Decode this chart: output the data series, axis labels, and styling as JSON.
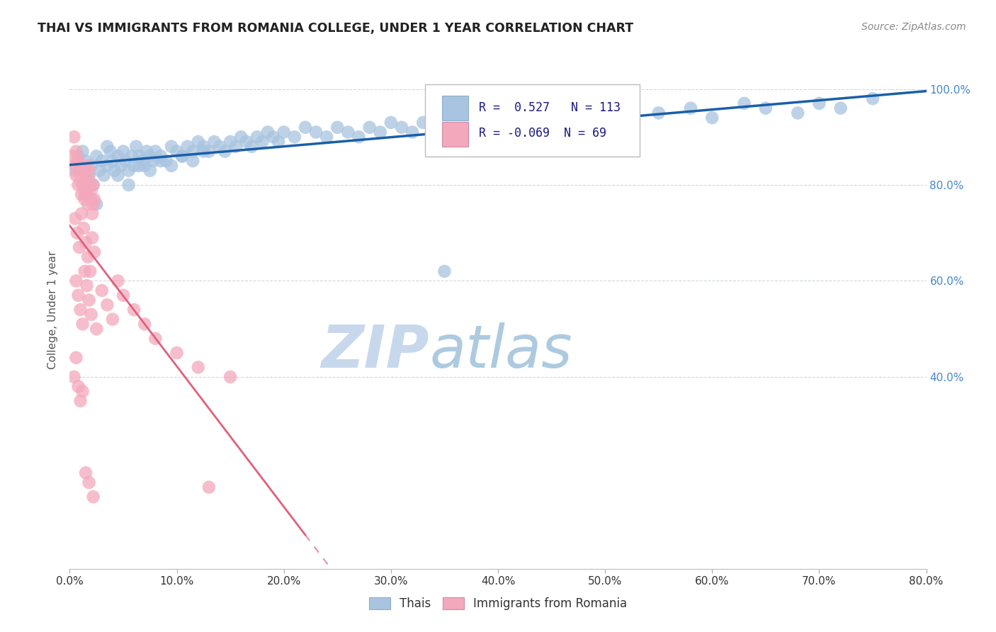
{
  "title": "THAI VS IMMIGRANTS FROM ROMANIA COLLEGE, UNDER 1 YEAR CORRELATION CHART",
  "source": "Source: ZipAtlas.com",
  "ylabel_label": "College, Under 1 year",
  "xlim": [
    0.0,
    0.8
  ],
  "ylim": [
    0.0,
    1.08
  ],
  "thai_R": 0.527,
  "thai_N": 113,
  "romania_R": -0.069,
  "romania_N": 69,
  "thai_color": "#a8c4e0",
  "thai_line_color": "#1a5fa8",
  "romania_color": "#f4a8bc",
  "romania_line_color": "#e0607a",
  "watermark_color": "#c8d8ec",
  "background_color": "#ffffff",
  "grid_color": "#c8d4dc",
  "right_axis_color": "#4488cc",
  "thai_scatter_x": [
    0.005,
    0.008,
    0.01,
    0.012,
    0.015,
    0.018,
    0.02,
    0.022,
    0.025,
    0.028,
    0.03,
    0.032,
    0.035,
    0.038,
    0.04,
    0.042,
    0.045,
    0.048,
    0.05,
    0.052,
    0.055,
    0.058,
    0.06,
    0.062,
    0.065,
    0.068,
    0.07,
    0.072,
    0.075,
    0.078,
    0.08,
    0.085,
    0.09,
    0.095,
    0.1,
    0.105,
    0.11,
    0.115,
    0.12,
    0.125,
    0.13,
    0.135,
    0.14,
    0.145,
    0.15,
    0.155,
    0.16,
    0.165,
    0.17,
    0.175,
    0.18,
    0.185,
    0.19,
    0.195,
    0.2,
    0.21,
    0.22,
    0.23,
    0.24,
    0.25,
    0.26,
    0.27,
    0.28,
    0.29,
    0.3,
    0.31,
    0.32,
    0.33,
    0.34,
    0.35,
    0.36,
    0.37,
    0.38,
    0.39,
    0.4,
    0.42,
    0.44,
    0.46,
    0.48,
    0.5,
    0.52,
    0.55,
    0.58,
    0.6,
    0.63,
    0.65,
    0.68,
    0.7,
    0.72,
    0.75,
    0.015,
    0.025,
    0.035,
    0.045,
    0.055,
    0.065,
    0.075,
    0.085,
    0.095,
    0.105,
    0.115,
    0.125,
    0.35
  ],
  "thai_scatter_y": [
    0.83,
    0.86,
    0.84,
    0.87,
    0.85,
    0.82,
    0.84,
    0.8,
    0.86,
    0.83,
    0.85,
    0.82,
    0.84,
    0.87,
    0.85,
    0.83,
    0.86,
    0.84,
    0.87,
    0.85,
    0.83,
    0.86,
    0.84,
    0.88,
    0.86,
    0.85,
    0.84,
    0.87,
    0.86,
    0.85,
    0.87,
    0.86,
    0.85,
    0.88,
    0.87,
    0.86,
    0.88,
    0.87,
    0.89,
    0.88,
    0.87,
    0.89,
    0.88,
    0.87,
    0.89,
    0.88,
    0.9,
    0.89,
    0.88,
    0.9,
    0.89,
    0.91,
    0.9,
    0.89,
    0.91,
    0.9,
    0.92,
    0.91,
    0.9,
    0.92,
    0.91,
    0.9,
    0.92,
    0.91,
    0.93,
    0.92,
    0.91,
    0.93,
    0.92,
    0.91,
    0.93,
    0.92,
    0.94,
    0.93,
    0.92,
    0.93,
    0.94,
    0.93,
    0.94,
    0.93,
    0.94,
    0.95,
    0.96,
    0.94,
    0.97,
    0.96,
    0.95,
    0.97,
    0.96,
    0.98,
    0.78,
    0.76,
    0.88,
    0.82,
    0.8,
    0.84,
    0.83,
    0.85,
    0.84,
    0.86,
    0.85,
    0.87,
    0.62
  ],
  "romania_scatter_x": [
    0.003,
    0.005,
    0.006,
    0.007,
    0.008,
    0.009,
    0.01,
    0.011,
    0.012,
    0.013,
    0.014,
    0.015,
    0.016,
    0.017,
    0.018,
    0.019,
    0.02,
    0.021,
    0.022,
    0.023,
    0.004,
    0.006,
    0.008,
    0.01,
    0.012,
    0.014,
    0.016,
    0.018,
    0.02,
    0.022,
    0.005,
    0.007,
    0.009,
    0.011,
    0.013,
    0.015,
    0.017,
    0.019,
    0.021,
    0.023,
    0.006,
    0.008,
    0.01,
    0.012,
    0.014,
    0.016,
    0.018,
    0.02,
    0.025,
    0.03,
    0.035,
    0.04,
    0.045,
    0.05,
    0.06,
    0.07,
    0.08,
    0.1,
    0.12,
    0.15,
    0.004,
    0.006,
    0.008,
    0.01,
    0.012,
    0.015,
    0.018,
    0.022,
    0.13
  ],
  "romania_scatter_y": [
    0.86,
    0.84,
    0.82,
    0.85,
    0.8,
    0.83,
    0.81,
    0.78,
    0.84,
    0.8,
    0.77,
    0.82,
    0.79,
    0.76,
    0.83,
    0.8,
    0.77,
    0.74,
    0.8,
    0.77,
    0.9,
    0.87,
    0.85,
    0.83,
    0.8,
    0.78,
    0.84,
    0.81,
    0.79,
    0.76,
    0.73,
    0.7,
    0.67,
    0.74,
    0.71,
    0.68,
    0.65,
    0.62,
    0.69,
    0.66,
    0.6,
    0.57,
    0.54,
    0.51,
    0.62,
    0.59,
    0.56,
    0.53,
    0.5,
    0.58,
    0.55,
    0.52,
    0.6,
    0.57,
    0.54,
    0.51,
    0.48,
    0.45,
    0.42,
    0.4,
    0.4,
    0.44,
    0.38,
    0.35,
    0.37,
    0.2,
    0.18,
    0.15,
    0.17
  ]
}
